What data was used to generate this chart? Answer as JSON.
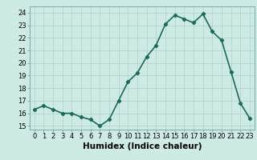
{
  "x": [
    0,
    1,
    2,
    3,
    4,
    5,
    6,
    7,
    8,
    9,
    10,
    11,
    12,
    13,
    14,
    15,
    16,
    17,
    18,
    19,
    20,
    21,
    22,
    23
  ],
  "y": [
    16.3,
    16.6,
    16.3,
    16.0,
    16.0,
    15.7,
    15.5,
    15.0,
    15.5,
    17.0,
    18.5,
    19.2,
    20.5,
    21.4,
    23.1,
    23.8,
    23.5,
    23.2,
    23.9,
    22.5,
    21.8,
    19.3,
    16.8,
    15.6
  ],
  "line_color": "#1a6b5a",
  "marker": "D",
  "marker_size": 2.2,
  "bg_color": "#ceeae4",
  "grid_color": "#aed0ca",
  "xlabel": "Humidex (Indice chaleur)",
  "xlim": [
    -0.5,
    23.5
  ],
  "ylim": [
    14.7,
    24.5
  ],
  "yticks": [
    15,
    16,
    17,
    18,
    19,
    20,
    21,
    22,
    23,
    24
  ],
  "xticks": [
    0,
    1,
    2,
    3,
    4,
    5,
    6,
    7,
    8,
    9,
    10,
    11,
    12,
    13,
    14,
    15,
    16,
    17,
    18,
    19,
    20,
    21,
    22,
    23
  ],
  "xtick_labels": [
    "0",
    "1",
    "2",
    "3",
    "4",
    "5",
    "6",
    "7",
    "8",
    "9",
    "10",
    "11",
    "12",
    "13",
    "14",
    "15",
    "16",
    "17",
    "18",
    "19",
    "20",
    "21",
    "22",
    "23"
  ],
  "tick_fontsize": 6,
  "xlabel_fontsize": 7.5,
  "line_width": 1.2
}
